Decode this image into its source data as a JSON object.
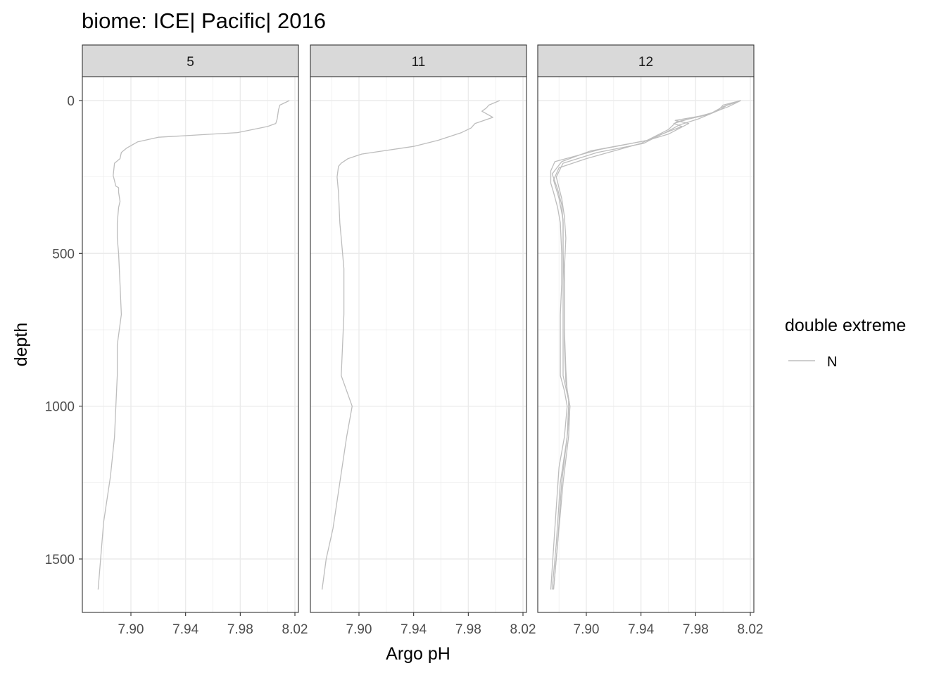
{
  "chart_data": {
    "type": "line",
    "title": "biome: ICE| Pacific| 2016",
    "xlabel": "Argo pH",
    "ylabel": "depth",
    "xlim": [
      7.865,
      8.02
    ],
    "ylim": [
      0,
      1660
    ],
    "y_reversed": true,
    "x_ticks": [
      "7.90",
      "7.94",
      "7.98",
      "8.02"
    ],
    "x_tick_values": [
      7.9,
      7.94,
      7.98,
      8.02
    ],
    "y_ticks": [
      "0",
      "500",
      "1000",
      "1500"
    ],
    "y_tick_values": [
      0,
      500,
      1000,
      1500
    ],
    "grid": true,
    "legend": {
      "title": "double extreme",
      "position": "right",
      "entries": [
        {
          "label": "N",
          "color": "#bdbdbd"
        }
      ]
    },
    "line_color": "#bdbdbd",
    "panels": [
      {
        "label": "5",
        "series": [
          {
            "name": "",
            "x": [
              8.016,
              8.009,
              8.008,
              8.007,
              8.006,
              8.0,
              7.978,
              7.92,
              7.905,
              7.897,
              7.893,
              7.892,
              7.888,
              7.887,
              7.889,
              7.891,
              7.891,
              7.892,
              7.891,
              7.89,
              7.89,
              7.891,
              7.892,
              7.893,
              7.89,
              7.89,
              7.889,
              7.888,
              7.885,
              7.88,
              7.876
            ],
            "y": [
              0,
              15,
              30,
              60,
              75,
              85,
              105,
              120,
              135,
              155,
              170,
              190,
              205,
              245,
              280,
              285,
              300,
              330,
              350,
              400,
              450,
              500,
              600,
              700,
              800,
              900,
              1000,
              1100,
              1230,
              1380,
              1600
            ]
          }
        ]
      },
      {
        "label": "11",
        "series": [
          {
            "name": "",
            "x": [
              8.003,
              7.995,
              7.993,
              7.99,
              7.998,
              7.985,
              7.982,
              7.975,
              7.958,
              7.94,
              7.902,
              7.892,
              7.887,
              7.885,
              7.884,
              7.885,
              7.886,
              7.887,
              7.888,
              7.889,
              7.889,
              7.888,
              7.887,
              7.895,
              7.891,
              7.886,
              7.881,
              7.876,
              7.873
            ],
            "y": [
              0,
              15,
              25,
              35,
              55,
              75,
              90,
              105,
              130,
              150,
              175,
              190,
              205,
              215,
              250,
              300,
              400,
              450,
              500,
              550,
              700,
              800,
              900,
              1000,
              1100,
              1250,
              1400,
              1500,
              1600
            ]
          }
        ]
      },
      {
        "label": "12",
        "series": [
          {
            "name": "",
            "x": [
              8.013,
              8.0,
              7.997,
              7.99,
              7.978,
              7.965,
              7.975,
              7.96,
              7.945,
              7.91,
              7.877,
              7.874,
              7.874,
              7.876,
              7.879,
              7.881,
              7.882,
              7.882,
              7.881,
              7.881,
              7.881,
              7.884,
              7.886,
              7.884,
              7.88,
              7.877,
              7.874
            ],
            "y": [
              0,
              15,
              30,
              45,
              55,
              65,
              75,
              110,
              130,
              160,
              200,
              230,
              270,
              300,
              350,
              400,
              500,
              600,
              700,
              800,
              900,
              950,
              1000,
              1100,
              1200,
              1400,
              1600
            ]
          },
          {
            "name": "",
            "x": [
              8.013,
              8.003,
              7.998,
              7.982,
              7.968,
              7.958,
              7.945,
              7.903,
              7.882,
              7.875,
              7.879,
              7.882,
              7.883,
              7.883,
              7.883,
              7.883,
              7.883,
              7.887,
              7.887,
              7.886,
              7.882,
              7.879,
              7.876
            ],
            "y": [
              0,
              15,
              30,
              60,
              80,
              105,
              130,
              165,
              200,
              240,
              290,
              340,
              400,
              500,
              600,
              700,
              900,
              980,
              1000,
              1100,
              1250,
              1450,
              1600
            ]
          },
          {
            "name": "",
            "x": [
              8.013,
              8.0,
              7.99,
              7.975,
              7.964,
              7.97,
              7.955,
              7.942,
              7.908,
              7.883,
              7.878,
              7.882,
              7.884,
              7.885,
              7.884,
              7.884,
              7.884,
              7.885,
              7.888,
              7.887,
              7.883,
              7.879,
              7.876
            ],
            "y": [
              0,
              20,
              45,
              60,
              75,
              85,
              110,
              140,
              170,
              205,
              250,
              320,
              380,
              450,
              550,
              650,
              800,
              920,
              1000,
              1100,
              1250,
              1450,
              1600
            ]
          },
          {
            "name": "",
            "x": [
              8.013,
              8.004,
              7.992,
              7.98,
              7.966,
              7.96,
              7.94,
              7.9,
              7.88,
              7.876,
              7.88,
              7.883,
              7.883,
              7.884,
              7.884,
              7.885,
              7.886,
              7.888,
              7.886,
              7.881,
              7.878,
              7.875
            ],
            "y": [
              0,
              20,
              40,
              55,
              70,
              95,
              140,
              190,
              220,
              260,
              320,
              390,
              500,
              600,
              750,
              880,
              950,
              1000,
              1100,
              1250,
              1450,
              1600
            ]
          }
        ]
      }
    ]
  }
}
